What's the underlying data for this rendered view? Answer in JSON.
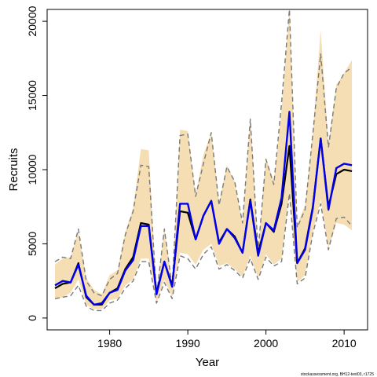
{
  "chart_data": {
    "type": "line",
    "xlabel": "Year",
    "ylabel": "Recruits",
    "xlim": [
      1972,
      2013
    ],
    "ylim": [
      -800,
      20800
    ],
    "x_ticks": [
      1980,
      1990,
      2000,
      2010
    ],
    "y_ticks": [
      0,
      5000,
      10000,
      15000,
      20000
    ],
    "x": [
      1973,
      1974,
      1975,
      1976,
      1977,
      1978,
      1979,
      1980,
      1981,
      1982,
      1983,
      1984,
      1985,
      1986,
      1987,
      1988,
      1989,
      1990,
      1991,
      1992,
      1993,
      1994,
      1995,
      1996,
      1997,
      1998,
      1999,
      2000,
      2001,
      2002,
      2003,
      2004,
      2005,
      2006,
      2007,
      2008,
      2009,
      2010,
      2011
    ],
    "band": {
      "color": "#f5deb3",
      "upper": [
        3600,
        4000,
        4100,
        5800,
        2700,
        1900,
        1600,
        2900,
        3200,
        5800,
        7400,
        11400,
        11300,
        1700,
        6100,
        2300,
        12700,
        12600,
        8300,
        11000,
        12500,
        7800,
        10300,
        9200,
        6400,
        13600,
        4600,
        10800,
        9200,
        14000,
        20800,
        6300,
        7600,
        12500,
        19400,
        11700,
        15700,
        16500,
        17400
      ],
      "lower": [
        1300,
        1400,
        1700,
        2600,
        900,
        600,
        600,
        1200,
        1300,
        2200,
        2600,
        4000,
        4000,
        1000,
        2600,
        1400,
        4400,
        4300,
        3600,
        4600,
        5000,
        3500,
        3700,
        3300,
        2800,
        4200,
        2700,
        4300,
        3600,
        4000,
        8500,
        2400,
        2900,
        5800,
        8000,
        4700,
        6400,
        6300,
        5900
      ]
    },
    "series": [
      {
        "style": "ci-bound",
        "color": "#7a7a7a",
        "dash": "6,4",
        "values": [
          3800,
          4100,
          4000,
          6000,
          2500,
          1700,
          1500,
          2600,
          3000,
          5600,
          7200,
          10300,
          10200,
          1500,
          6000,
          2100,
          12300,
          12400,
          8200,
          10400,
          12500,
          7600,
          10200,
          9200,
          6400,
          13400,
          4500,
          10700,
          9000,
          14500,
          20800,
          6100,
          7300,
          12400,
          17800,
          11500,
          15500,
          16500,
          16900
        ]
      },
      {
        "style": "ci-bound",
        "color": "#7a7a7a",
        "dash": "6,4",
        "values": [
          1300,
          1400,
          1500,
          2200,
          800,
          500,
          500,
          1000,
          1200,
          2000,
          2500,
          3800,
          3800,
          1000,
          2400,
          1300,
          4200,
          4000,
          3300,
          4300,
          4800,
          3300,
          3600,
          3200,
          2700,
          4000,
          2600,
          4100,
          3500,
          3800,
          8400,
          2300,
          2700,
          5700,
          7700,
          4600,
          6700,
          6800,
          6200
        ]
      },
      {
        "style": "solid",
        "color": "#000000",
        "width": 2.2,
        "values": [
          2000,
          2300,
          2400,
          3700,
          1400,
          900,
          900,
          1700,
          2000,
          3300,
          4100,
          6400,
          6300,
          1700,
          3800,
          2200,
          7200,
          7100,
          5300,
          6900,
          7900,
          5100,
          6000,
          5500,
          4400,
          8000,
          4400,
          6400,
          5800,
          7700,
          11600,
          3700,
          4700,
          7500,
          12100,
          7500,
          9700,
          10000,
          9900
        ]
      },
      {
        "style": "solid",
        "color": "#0000ee",
        "width": 2.4,
        "values": [
          2200,
          2500,
          2400,
          3600,
          1500,
          900,
          1000,
          1700,
          1900,
          3200,
          3900,
          6200,
          6200,
          1600,
          3800,
          2100,
          7700,
          7700,
          5300,
          6900,
          7900,
          5000,
          6000,
          5400,
          4400,
          7900,
          4200,
          6400,
          5900,
          8100,
          13900,
          3700,
          4600,
          7400,
          12100,
          7300,
          10100,
          10400,
          10300
        ]
      }
    ]
  },
  "footer": {
    "credit": "stockassessment.org, BH12-test03, r1725"
  }
}
